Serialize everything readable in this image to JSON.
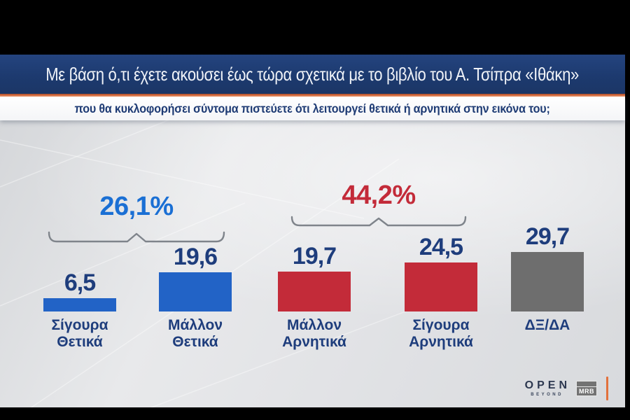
{
  "title_bar": {
    "text": "Με βάση ό,τι έχετε ακούσει έως τώρα σχετικά με το βιβλίο του Α. Τσίπρα «Ιθάκη»"
  },
  "subtitle": {
    "text": "που θα κυκλοφορήσει σύντομα πιστεύετε ότι λειτουργεί θετικά ή αρνητικά στην εικόνα του;"
  },
  "chart_data": {
    "type": "bar",
    "categories": [
      "Σίγουρα Θετικά",
      "Μάλλον Θετικά",
      "Μάλλον Αρνητικά",
      "Σίγουρα Αρνητικά",
      "ΔΞ/ΔΑ"
    ],
    "category_lines": [
      [
        "Σίγουρα",
        "Θετικά"
      ],
      [
        "Μάλλον",
        "Θετικά"
      ],
      [
        "Μάλλον",
        "Αρνητικά"
      ],
      [
        "Σίγουρα",
        "Αρνητικά"
      ],
      [
        "ΔΞ/ΔΑ"
      ]
    ],
    "values": [
      6.5,
      19.6,
      19.7,
      24.5,
      29.7
    ],
    "value_labels": [
      "6,5",
      "19,6",
      "19,7",
      "24,5",
      "29,7"
    ],
    "bar_colors": [
      "#2263c6",
      "#2263c6",
      "#c32b39",
      "#c32b39",
      "#6e6e6e"
    ],
    "value_label_color": "#1e3d7c",
    "category_label_color": "#1e3d7c",
    "groups": [
      {
        "label": "26,1%",
        "color": "#1a6fd4",
        "covers": [
          "Σίγουρα Θετικά",
          "Μάλλον Θετικά"
        ]
      },
      {
        "label": "44,2%",
        "color": "#c32b39",
        "covers": [
          "Μάλλον Αρνητικά",
          "Σίγουρα Αρνητικά"
        ]
      }
    ],
    "bracket_color": "#7f848b",
    "title": "",
    "xlabel": "",
    "ylabel": "",
    "ylim": [
      0,
      30
    ],
    "grid": false,
    "legend": false
  },
  "footer": {
    "open_logo": "OPEN",
    "open_sub": "BEYOND",
    "mrb_logo": "MRB"
  },
  "colors": {
    "title_band": "#1d3a6f",
    "accent_orange": "#dd7348",
    "background": "#dfe1e4",
    "positive_blue": "#2263c6",
    "negative_red": "#c32b39",
    "neutral_gray": "#6e6e6e",
    "text_navy": "#1e3d7c"
  }
}
